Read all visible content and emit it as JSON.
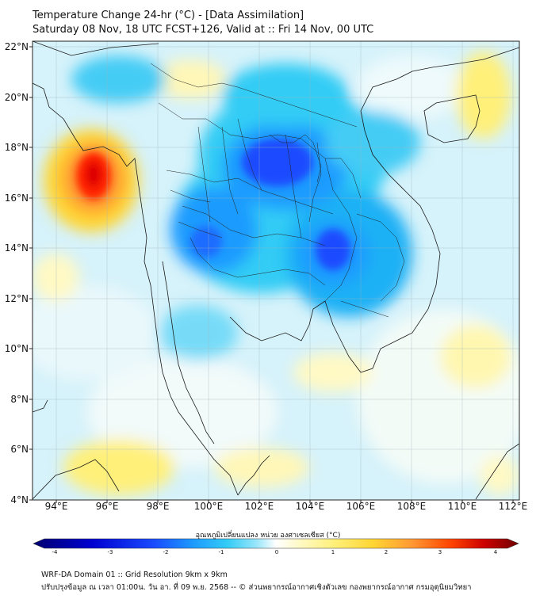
{
  "header": {
    "title": "Temperature Change 24-hr (°C) - [Data Assimilation]",
    "subtitle": "Saturday 08 Nov, 18 UTC FCST+126, Valid at :: Fri 14 Nov, 00 UTC"
  },
  "map": {
    "lat_labels": [
      "22°N",
      "20°N",
      "18°N",
      "16°N",
      "14°N",
      "12°N",
      "10°N",
      "8°N",
      "6°N",
      "4°N"
    ],
    "lon_labels": [
      "94°E",
      "96°E",
      "98°E",
      "100°E",
      "102°E",
      "104°E",
      "106°E",
      "108°E",
      "110°E",
      "112°E"
    ],
    "lat_range": [
      4,
      22
    ],
    "lon_range": [
      93,
      112.5
    ]
  },
  "colorbar": {
    "title": "อุณหภูมิเปลี่ยนแปลง หน่วย องศาเซลเซียส (°C)",
    "ticks": [
      "-4",
      "-3",
      "-2",
      "-1",
      "0",
      "1",
      "2",
      "3",
      "4"
    ],
    "range": [
      -4,
      4
    ],
    "colors": [
      "#000070",
      "#0000d0",
      "#1a4cff",
      "#1c9bff",
      "#33ccf5",
      "#99e6fa",
      "#e6f7fa",
      "#ffffff",
      "#fff9c4",
      "#fff07a",
      "#ffd633",
      "#ff9933",
      "#ff4400",
      "#cc0000",
      "#700000"
    ]
  },
  "footer": {
    "line1": "WRF-DA Domain 01 :: Grid Resolution 9km x 9km",
    "line2": "ปรับปรุงข้อมูล ณ เวลา 01:00น. วัน อา. ที่ 09 พ.ย. 2568 -- © ส่วนพยากรณ์อากาศเชิงตัวเลข กองพยากรณ์อากาศ กรมอุตุนิยมวิทยา"
  }
}
